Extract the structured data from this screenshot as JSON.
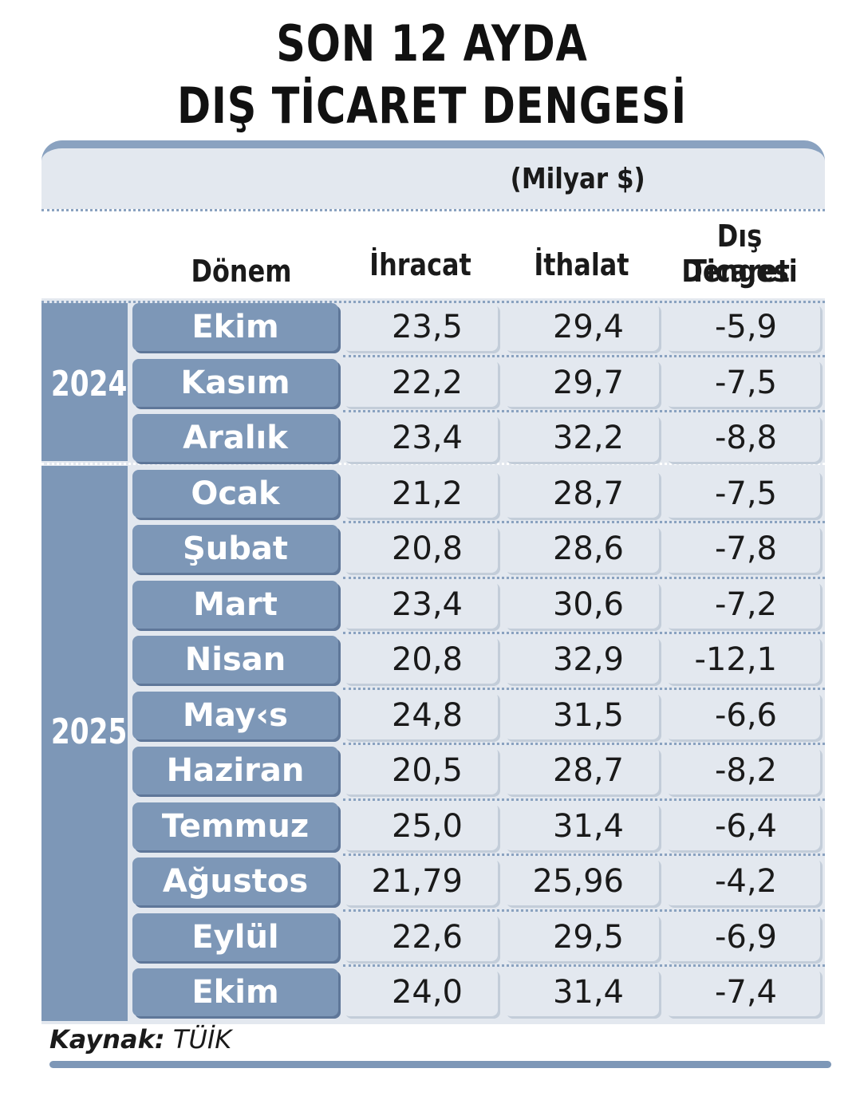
{
  "title_line1": "SON 12 AYDA",
  "title_line2": "DIŞ TİCARET DENGESİ",
  "unit": "(Milyar $)",
  "columns": {
    "period": "Dönem",
    "exports": "İhracat",
    "imports": "İthalat",
    "balance_line1": "Dış Ticaret",
    "balance_line2": "Dengesi"
  },
  "years": [
    "2024",
    "2025"
  ],
  "source_label": "Kaynak:",
  "source_value": "TÜİK",
  "colors": {
    "accent": "#7d97b7",
    "panel": "#e3e8ef"
  },
  "chart_data": {
    "type": "table",
    "title": "SON 12 AYDA DIŞ TİCARET DENGESİ",
    "unit": "(Milyar $)",
    "columns": [
      "Dönem",
      "İhracat",
      "İthalat",
      "Dış Ticaret Dengesi"
    ],
    "rows": [
      {
        "year": "2024",
        "month": "Ekim",
        "exports": "23,5",
        "imports": "29,4",
        "balance": "-5,9"
      },
      {
        "year": "2024",
        "month": "Kasım",
        "exports": "22,2",
        "imports": "29,7",
        "balance": "-7,5"
      },
      {
        "year": "2024",
        "month": "Aralık",
        "exports": "23,4",
        "imports": "32,2",
        "balance": "-8,8"
      },
      {
        "year": "2025",
        "month": "Ocak",
        "exports": "21,2",
        "imports": "28,7",
        "balance": "-7,5"
      },
      {
        "year": "2025",
        "month": "Şubat",
        "exports": "20,8",
        "imports": "28,6",
        "balance": "-7,8"
      },
      {
        "year": "2025",
        "month": "Mart",
        "exports": "23,4",
        "imports": "30,6",
        "balance": "-7,2"
      },
      {
        "year": "2025",
        "month": "Nisan",
        "exports": "20,8",
        "imports": "32,9",
        "balance": "-12,1"
      },
      {
        "year": "2025",
        "month": "May‹s",
        "exports": "24,8",
        "imports": "31,5",
        "balance": "-6,6"
      },
      {
        "year": "2025",
        "month": "Haziran",
        "exports": "20,5",
        "imports": "28,7",
        "balance": "-8,2"
      },
      {
        "year": "2025",
        "month": "Temmuz",
        "exports": "25,0",
        "imports": "31,4",
        "balance": "-6,4"
      },
      {
        "year": "2025",
        "month": "Ağustos",
        "exports": "21,79",
        "imports": "25,96",
        "balance": "-4,2"
      },
      {
        "year": "2025",
        "month": "Eylül",
        "exports": "22,6",
        "imports": "29,5",
        "balance": "-6,9"
      },
      {
        "year": "2025",
        "month": "Ekim",
        "exports": "24,0",
        "imports": "31,4",
        "balance": "-7,4"
      }
    ]
  }
}
